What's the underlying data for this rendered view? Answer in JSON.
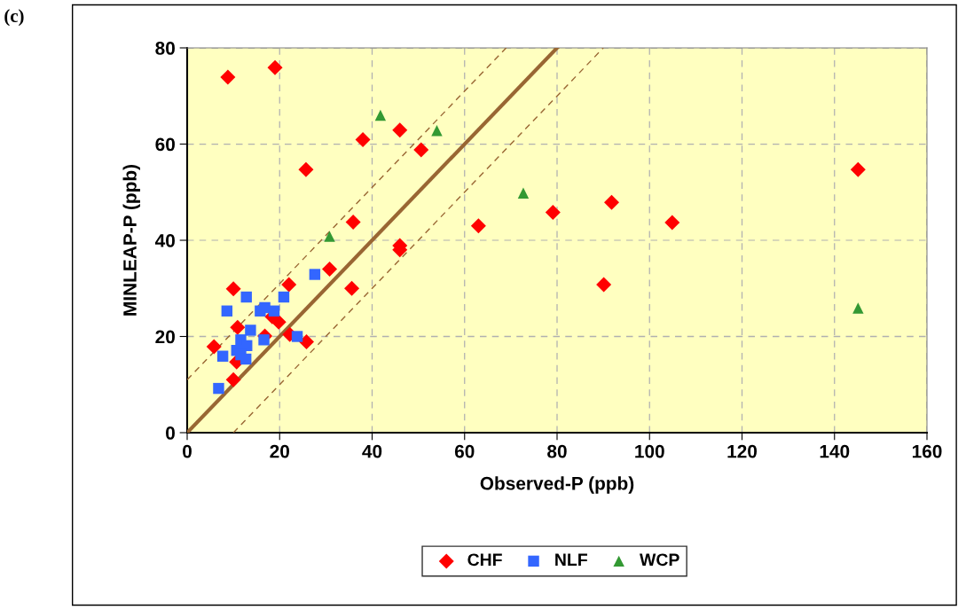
{
  "chart_data": {
    "type": "scatter",
    "xlabel": "Observed-P (ppb)",
    "ylabel": "MINLEAP-P (ppb)",
    "annotations": [
      "(c)"
    ],
    "xlim": [
      0,
      160
    ],
    "xticks": [
      0,
      20,
      40,
      60,
      80,
      100,
      120,
      140,
      160
    ],
    "ylim": [
      0,
      80
    ],
    "yticks": [
      0,
      20,
      40,
      60,
      80
    ],
    "grid": true,
    "legend": "bottom",
    "series": [
      {
        "name": "CHF",
        "color": "#ff0000",
        "marker": "diamond",
        "x": [
          8.8,
          19.0,
          25.7,
          38.0,
          46.0,
          50.6,
          35.9,
          63.0,
          46.0,
          46.0,
          30.8,
          35.6,
          22.0,
          10.0,
          10.9,
          5.8,
          10.0,
          10.7,
          18.4,
          19.8,
          16.8,
          22.2,
          25.8,
          79.1,
          91.8,
          104.9,
          90.1,
          145.1
        ],
        "values": [
          73.9,
          75.9,
          54.7,
          60.9,
          62.9,
          58.8,
          43.8,
          43.0,
          38.9,
          38.0,
          34.0,
          30.0,
          30.8,
          29.9,
          21.9,
          17.9,
          11.0,
          14.7,
          24.1,
          23.0,
          20.1,
          20.4,
          18.9,
          45.8,
          47.9,
          43.7,
          30.8,
          54.7
        ]
      },
      {
        "name": "NLF",
        "color": "#3366ff",
        "marker": "square",
        "x": [
          27.6,
          12.8,
          20.9,
          8.6,
          15.8,
          16.8,
          18.8,
          13.7,
          11.6,
          16.6,
          23.8,
          12.9,
          10.7,
          11.6,
          12.7,
          7.7,
          6.8
        ],
        "values": [
          32.9,
          28.2,
          28.2,
          25.3,
          25.3,
          26.0,
          25.3,
          21.3,
          19.3,
          19.3,
          20.0,
          18.1,
          17.1,
          16.2,
          15.3,
          15.9,
          9.2
        ]
      },
      {
        "name": "WCP",
        "color": "#339933",
        "marker": "triangle",
        "x": [
          41.8,
          54.0,
          30.8,
          72.7,
          145.1
        ],
        "values": [
          66.0,
          62.8,
          40.8,
          49.8,
          25.9
        ]
      },
      {
        "type": "line",
        "color": "#996633",
        "line_style": "solid",
        "x": [
          0,
          80
        ],
        "values": [
          0,
          80
        ]
      },
      {
        "type": "line",
        "color": "#996633",
        "line_style": "dashed",
        "x": [
          0,
          69
        ],
        "values": [
          11,
          80
        ]
      },
      {
        "type": "line",
        "color": "#996633",
        "line_style": "dashed",
        "x": [
          10,
          90
        ],
        "values": [
          0,
          80
        ]
      }
    ]
  }
}
